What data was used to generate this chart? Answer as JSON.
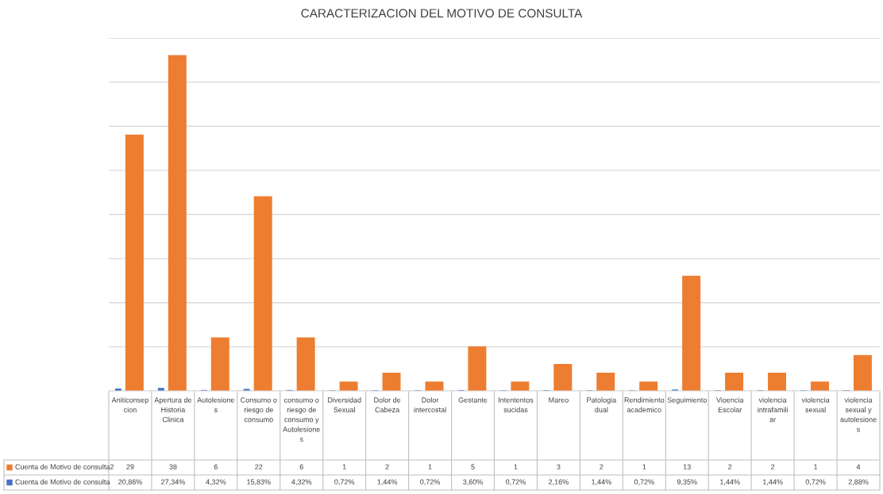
{
  "chart_data": {
    "type": "bar",
    "title": "CARACTERIZACION DEL MOTIVO DE CONSULTA",
    "categories": [
      "Aniticonsepcion",
      "Apertura de Historia Clinica",
      "Autolesiones",
      "Consumo o riesgo de consumo",
      "consumo o riesgo de consumo y Autolesiones",
      "Diversidad Sexual",
      "Dolor de Cabeza",
      "Dolor intercostal",
      "Gestante",
      "Intententos sucidas",
      "Mareo",
      "Patologia dual",
      "Rendimiento academico",
      "Seguimiento",
      "Vioencia Escolar",
      "violencia intrafamiliar",
      "violencia sexual",
      "violencia sexual y autolesiones"
    ],
    "series": [
      {
        "name": "Cuenta de Motivo de consulta2",
        "color": "#ed7d31",
        "values": [
          29,
          38,
          6,
          22,
          6,
          1,
          2,
          1,
          5,
          1,
          3,
          2,
          1,
          13,
          2,
          2,
          1,
          4
        ],
        "value_labels": [
          "29",
          "38",
          "6",
          "22",
          "6",
          "1",
          "2",
          "1",
          "5",
          "1",
          "3",
          "2",
          "1",
          "13",
          "2",
          "2",
          "1",
          "4"
        ]
      },
      {
        "name": "Cuenta de Motivo de consulta",
        "color": "#4472c4",
        "values": [
          0.2086,
          0.2734,
          0.0432,
          0.1583,
          0.0432,
          0.0072,
          0.0144,
          0.0072,
          0.036,
          0.0072,
          0.0216,
          0.0144,
          0.0072,
          0.0935,
          0.0144,
          0.0144,
          0.0072,
          0.0288
        ],
        "value_labels": [
          "20,86%",
          "27,34%",
          "4,32%",
          "15,83%",
          "4,32%",
          "0,72%",
          "1,44%",
          "0,72%",
          "3,60%",
          "0,72%",
          "2,16%",
          "1,44%",
          "0,72%",
          "9,35%",
          "1,44%",
          "1,44%",
          "0,72%",
          "2,88%"
        ]
      }
    ],
    "ylim": [
      0,
      40
    ],
    "yticks": [
      {
        "value": 0,
        "label": null
      },
      {
        "value": 5,
        "label": null
      },
      {
        "value": 10,
        "label": null
      },
      {
        "value": 15,
        "label": null
      },
      {
        "value": 20,
        "label": null
      },
      {
        "value": 25,
        "label": null
      },
      {
        "value": 30,
        "label": null
      },
      {
        "value": 35,
        "label": null
      },
      {
        "value": 40,
        "label": null
      }
    ],
    "grid": "y",
    "legend": "bottom left"
  }
}
